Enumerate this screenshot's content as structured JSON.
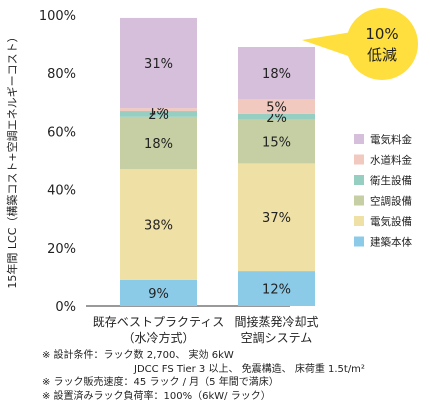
{
  "chart_data": {
    "type": "bar",
    "stacked": true,
    "ylabel": "15年間 LCC（構築コスト+空調エネルギーコスト）",
    "yticks": [
      "0%",
      "20%",
      "40%",
      "60%",
      "80%",
      "100%"
    ],
    "ylim": [
      0,
      100
    ],
    "categories": [
      {
        "line1": "既存ベストプラクティス",
        "line2": "（水冷方式）"
      },
      {
        "line1": "間接蒸発冷却式",
        "line2": "空調システム"
      }
    ],
    "series": [
      {
        "name": "建築本体",
        "color": "#8ccbe8",
        "values": [
          9,
          12
        ],
        "labels": [
          "9%",
          "12%"
        ]
      },
      {
        "name": "電気設備",
        "color": "#efe0a6",
        "values": [
          38,
          37
        ],
        "labels": [
          "38%",
          "37%"
        ]
      },
      {
        "name": "空調設備",
        "color": "#c6cfa3",
        "values": [
          18,
          15
        ],
        "labels": [
          "18%",
          "15%"
        ]
      },
      {
        "name": "衛生設備",
        "color": "#96cfc1",
        "values": [
          2,
          2
        ],
        "labels": [
          "2%",
          "2%"
        ]
      },
      {
        "name": "水道料金",
        "color": "#f1c9bf",
        "values": [
          1,
          5
        ],
        "labels": [
          "1%",
          "5%"
        ]
      },
      {
        "name": "電気料金",
        "color": "#d5bfda",
        "values": [
          31,
          18
        ],
        "labels": [
          "31%",
          "18%"
        ]
      }
    ],
    "legend_order": [
      "電気料金",
      "水道料金",
      "衛生設備",
      "空調設備",
      "電気設備",
      "建築本体"
    ],
    "legend_position": "right",
    "callout": {
      "line1": "10%",
      "line2": "低減",
      "color": "#ffdf3d"
    }
  },
  "notes": [
    "※ 設計条件：ラック数 2,700、 実効 6kW",
    "JDCC FS Tier 3 以上、 免震構造、 床荷重 1.5t/m²",
    "※ ラック販売速度：45 ラック / 月（5 年間で満床）",
    "※ 設置済みラック負荷率：100%（6kW/ ラック）"
  ]
}
